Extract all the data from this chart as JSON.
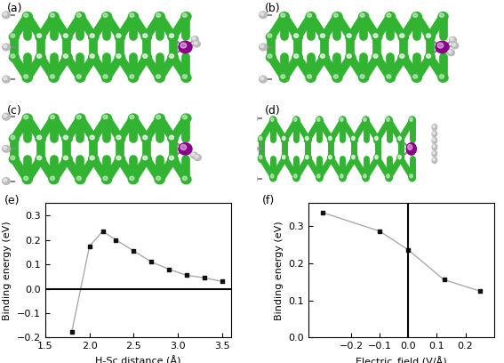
{
  "plot_e": {
    "x": [
      1.8,
      2.0,
      2.15,
      2.3,
      2.5,
      2.7,
      2.9,
      3.1,
      3.3,
      3.5
    ],
    "y": [
      -0.175,
      0.175,
      0.235,
      0.2,
      0.155,
      0.11,
      0.08,
      0.055,
      0.045,
      0.03
    ],
    "xlabel": "H-Sc distance (Å)",
    "ylabel": "Binding energy (eV)",
    "xlim": [
      1.5,
      3.6
    ],
    "ylim": [
      -0.2,
      0.35
    ],
    "yticks": [
      -0.2,
      -0.1,
      0.0,
      0.1,
      0.2,
      0.3
    ],
    "xticks": [
      1.5,
      2.0,
      2.5,
      3.0,
      3.5
    ],
    "hline_y": 0.0,
    "marker": "s",
    "markersize": 3.5,
    "linecolor": "#aaaaaa",
    "markercolor": "#111111"
  },
  "plot_f": {
    "x": [
      -0.3,
      -0.1,
      0.0,
      0.125,
      0.25
    ],
    "y": [
      0.335,
      0.285,
      0.235,
      0.155,
      0.125
    ],
    "xlabel": "Electric_field (V/Å)",
    "ylabel": "Binding energy (eV)",
    "xlim": [
      -0.35,
      0.3
    ],
    "ylim": [
      0.0,
      0.36
    ],
    "yticks": [
      0.0,
      0.1,
      0.2,
      0.3
    ],
    "xticks": [
      -0.2,
      -0.1,
      0.0,
      0.1,
      0.2
    ],
    "vline_x": 0.0,
    "marker": "s",
    "markersize": 3.5,
    "linecolor": "#aaaaaa",
    "markercolor": "#111111"
  },
  "bg_color": "#ffffff",
  "font_color": "#000000",
  "label_fontsize": 9,
  "tick_fontsize": 8,
  "axis_fontsize": 8
}
